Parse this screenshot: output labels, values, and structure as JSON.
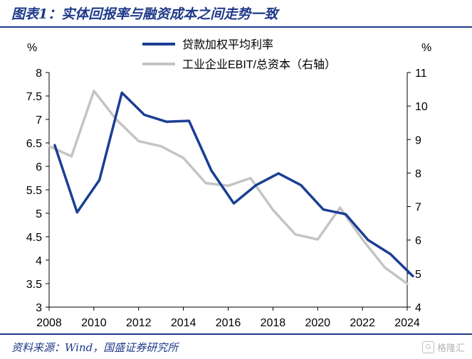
{
  "header": {
    "title": "图表1：实体回报率与融资成本之间走势一致"
  },
  "footer": {
    "source": "资料来源：Wind，国盛证券研究所",
    "watermark_logo": "G",
    "watermark_text": "格隆汇"
  },
  "chart_data": {
    "type": "line",
    "title": "",
    "xlabel": "",
    "ylabel_left": "%",
    "ylabel_right": "%",
    "xlim": [
      2008,
      2024
    ],
    "x_ticks": [
      2008,
      2010,
      2012,
      2014,
      2016,
      2018,
      2020,
      2022,
      2024
    ],
    "ylim_left": [
      3,
      8
    ],
    "yticks_left": [
      "3",
      "3.5",
      "4",
      "4.5",
      "5",
      "5.5",
      "6",
      "6.5",
      "7",
      "7.5",
      "8"
    ],
    "ylim_right": [
      4,
      11
    ],
    "yticks_right": [
      "4",
      "5",
      "6",
      "7",
      "8",
      "9",
      "10",
      "11"
    ],
    "legend_position": "top-center",
    "grid": false,
    "series": [
      {
        "name": "贷款加权平均利率",
        "axis": "left",
        "color": "#1a3f93",
        "x": [
          2008.25,
          2009.25,
          2010.25,
          2011.25,
          2012.25,
          2013.25,
          2014.25,
          2015.25,
          2016.25,
          2017.25,
          2018.25,
          2019.25,
          2020.25,
          2021.25,
          2022.25,
          2023.25,
          2024.25
        ],
        "values": [
          6.45,
          5.02,
          5.71,
          7.57,
          7.1,
          6.95,
          6.97,
          5.91,
          5.21,
          5.6,
          5.85,
          5.6,
          5.08,
          4.98,
          4.43,
          4.13,
          3.66
        ]
      },
      {
        "name": "工业企业EBIT/总资本（右轴）",
        "axis": "right",
        "color": "#c4c4c4",
        "x": [
          2008.0,
          2009.0,
          2010.0,
          2011.0,
          2012.0,
          2013.0,
          2014.0,
          2015.0,
          2016.0,
          2017.0,
          2018.0,
          2019.0,
          2020.0,
          2021.0,
          2022.0,
          2023.0,
          2024.0
        ],
        "values": [
          8.8,
          8.5,
          10.45,
          9.6,
          8.95,
          8.8,
          8.45,
          7.7,
          7.62,
          7.85,
          6.9,
          6.17,
          6.02,
          6.97,
          6.02,
          5.18,
          4.7
        ]
      }
    ]
  }
}
